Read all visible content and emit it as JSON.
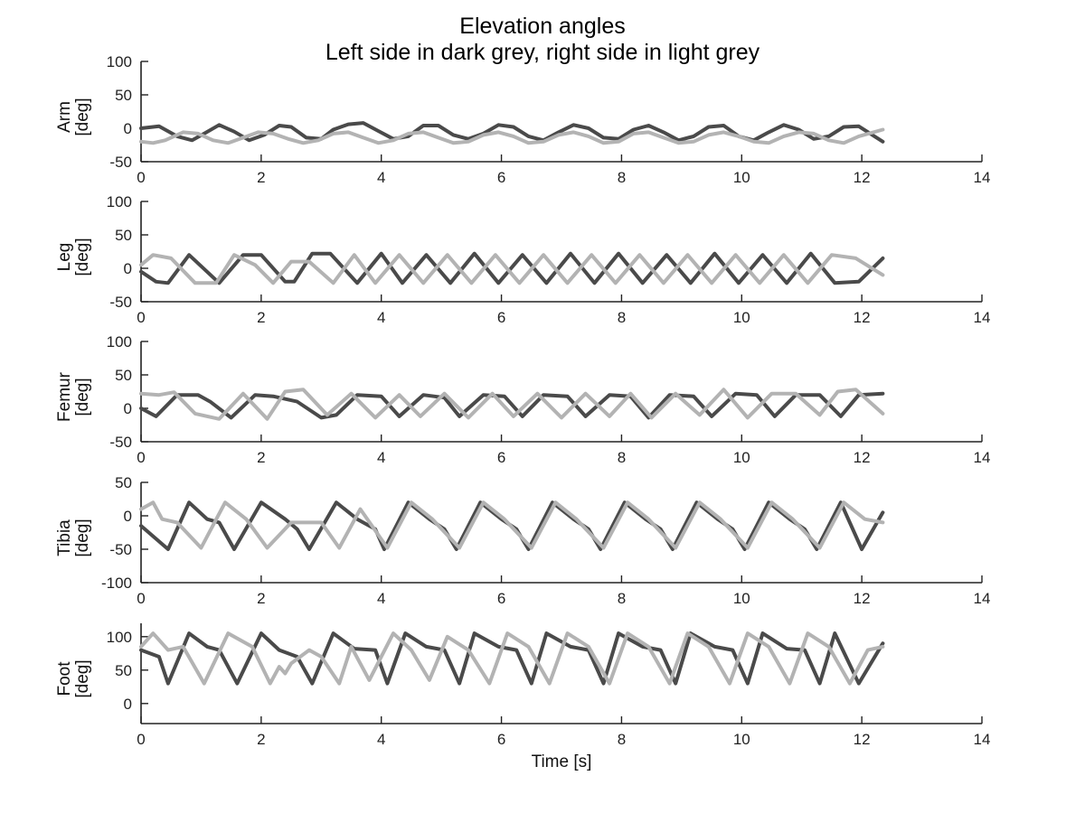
{
  "chart_data": {
    "type": "line",
    "title": "Elevation angles",
    "subtitle": "Left side in dark grey, right side in light grey",
    "xlabel": "Time [s]",
    "xlim": [
      0,
      14
    ],
    "xticks": [
      0,
      2,
      4,
      6,
      8,
      10,
      12,
      14
    ],
    "grid": false,
    "colors": {
      "left": "#4a4a4a",
      "right": "#b3b3b3"
    },
    "panels": [
      {
        "ylabel": [
          "Arm",
          "[deg]"
        ],
        "ylim": [
          -50,
          100
        ],
        "yticks": [
          -50,
          0,
          50,
          100
        ],
        "series": [
          {
            "side": "left",
            "x": [
              0,
              0.3,
              0.6,
              0.85,
              1.05,
              1.3,
              1.55,
              1.8,
              2.05,
              2.3,
              2.5,
              2.75,
              3.0,
              3.2,
              3.45,
              3.7,
              3.95,
              4.2,
              4.45,
              4.7,
              4.95,
              5.2,
              5.45,
              5.7,
              5.95,
              6.2,
              6.45,
              6.7,
              6.95,
              7.2,
              7.45,
              7.7,
              7.95,
              8.2,
              8.45,
              8.7,
              8.95,
              9.2,
              9.45,
              9.7,
              9.95,
              10.2,
              10.45,
              10.7,
              10.95,
              11.2,
              11.45,
              11.7,
              11.95,
              12.35
            ],
            "y": [
              0,
              3,
              -12,
              -18,
              -8,
              5,
              -5,
              -18,
              -10,
              4,
              2,
              -14,
              -16,
              -2,
              6,
              8,
              -4,
              -16,
              -12,
              4,
              4,
              -10,
              -16,
              -8,
              5,
              2,
              -12,
              -18,
              -6,
              5,
              0,
              -14,
              -16,
              -2,
              4,
              -6,
              -18,
              -12,
              2,
              4,
              -12,
              -18,
              -6,
              5,
              -2,
              -16,
              -12,
              2,
              3,
              -20
            ]
          },
          {
            "side": "right",
            "x": [
              0,
              0.2,
              0.4,
              0.7,
              0.95,
              1.2,
              1.45,
              1.7,
              1.95,
              2.2,
              2.45,
              2.7,
              2.95,
              3.2,
              3.45,
              3.7,
              3.95,
              4.2,
              4.45,
              4.7,
              4.95,
              5.2,
              5.45,
              5.7,
              5.95,
              6.2,
              6.45,
              6.7,
              6.95,
              7.2,
              7.45,
              7.7,
              7.95,
              8.2,
              8.45,
              8.7,
              8.95,
              9.2,
              9.45,
              9.7,
              9.95,
              10.2,
              10.45,
              10.7,
              10.95,
              11.2,
              11.45,
              11.7,
              11.95,
              12.35
            ],
            "y": [
              -20,
              -22,
              -18,
              -6,
              -8,
              -18,
              -22,
              -14,
              -6,
              -8,
              -16,
              -22,
              -18,
              -8,
              -6,
              -14,
              -22,
              -18,
              -8,
              -6,
              -14,
              -22,
              -20,
              -10,
              -6,
              -12,
              -22,
              -20,
              -10,
              -6,
              -12,
              -22,
              -20,
              -8,
              -6,
              -14,
              -22,
              -20,
              -10,
              -6,
              -12,
              -20,
              -22,
              -12,
              -6,
              -8,
              -18,
              -22,
              -12,
              -2
            ]
          }
        ]
      },
      {
        "ylabel": [
          "Leg",
          "[deg]"
        ],
        "ylim": [
          -50,
          100
        ],
        "yticks": [
          -50,
          0,
          50,
          100
        ],
        "series": [
          {
            "side": "left",
            "x": [
              0,
              0.25,
              0.45,
              0.8,
              1.3,
              1.7,
              2.0,
              2.4,
              2.55,
              2.85,
              3.15,
              3.6,
              4.0,
              4.35,
              4.75,
              5.15,
              5.55,
              5.95,
              6.35,
              6.75,
              7.15,
              7.55,
              7.95,
              8.35,
              8.75,
              9.15,
              9.55,
              9.95,
              10.35,
              10.75,
              11.15,
              11.55,
              11.95,
              12.35
            ],
            "y": [
              -5,
              -20,
              -22,
              20,
              -22,
              20,
              20,
              -20,
              -20,
              22,
              22,
              -22,
              22,
              -22,
              20,
              -22,
              22,
              -22,
              20,
              -22,
              22,
              -22,
              22,
              -22,
              20,
              -22,
              22,
              -22,
              20,
              -22,
              22,
              -22,
              -20,
              15
            ]
          },
          {
            "side": "right",
            "x": [
              0,
              0.2,
              0.5,
              0.9,
              1.25,
              1.55,
              1.9,
              2.2,
              2.5,
              2.8,
              3.2,
              3.55,
              3.9,
              4.3,
              4.7,
              5.1,
              5.5,
              5.9,
              6.3,
              6.7,
              7.1,
              7.5,
              7.9,
              8.3,
              8.7,
              9.1,
              9.5,
              9.9,
              10.3,
              10.7,
              11.1,
              11.5,
              11.9,
              12.35
            ],
            "y": [
              5,
              20,
              15,
              -22,
              -22,
              20,
              5,
              -22,
              10,
              10,
              -22,
              20,
              -22,
              20,
              -22,
              20,
              -22,
              20,
              -22,
              20,
              -22,
              20,
              -22,
              20,
              -22,
              20,
              -22,
              20,
              -22,
              20,
              -22,
              20,
              15,
              -10
            ]
          }
        ]
      },
      {
        "ylabel": [
          "Femur",
          "[deg]"
        ],
        "ylim": [
          -50,
          100
        ],
        "yticks": [
          -50,
          0,
          50,
          100
        ],
        "series": [
          {
            "side": "left",
            "x": [
              0,
              0.25,
              0.6,
              0.95,
              1.15,
              1.5,
              1.9,
              2.2,
              2.6,
              3.0,
              3.25,
              3.6,
              4.0,
              4.3,
              4.7,
              5.05,
              5.3,
              5.7,
              6.05,
              6.35,
              6.7,
              7.1,
              7.4,
              7.8,
              8.15,
              8.45,
              8.8,
              9.2,
              9.5,
              9.9,
              10.25,
              10.55,
              10.9,
              11.3,
              11.65,
              11.95,
              12.35
            ],
            "y": [
              0,
              -12,
              20,
              20,
              10,
              -14,
              20,
              18,
              10,
              -14,
              -10,
              20,
              18,
              -12,
              20,
              16,
              -12,
              20,
              18,
              -12,
              20,
              18,
              -12,
              20,
              18,
              -14,
              20,
              18,
              -12,
              22,
              20,
              -12,
              20,
              20,
              -12,
              20,
              22
            ]
          },
          {
            "side": "right",
            "x": [
              0,
              0.3,
              0.55,
              0.9,
              1.3,
              1.7,
              2.1,
              2.4,
              2.7,
              3.1,
              3.5,
              3.9,
              4.3,
              4.65,
              5.05,
              5.45,
              5.85,
              6.2,
              6.6,
              7.0,
              7.4,
              7.8,
              8.15,
              8.5,
              8.9,
              9.3,
              9.7,
              10.1,
              10.5,
              10.9,
              11.3,
              11.6,
              11.9,
              12.35
            ],
            "y": [
              22,
              20,
              24,
              -8,
              -16,
              22,
              -16,
              25,
              28,
              -10,
              22,
              -14,
              20,
              -12,
              22,
              -14,
              22,
              -12,
              22,
              -14,
              22,
              -12,
              22,
              -14,
              22,
              -10,
              28,
              -14,
              22,
              22,
              -10,
              25,
              28,
              -8
            ]
          }
        ]
      },
      {
        "ylabel": [
          "Tibia",
          "[deg]"
        ],
        "ylim": [
          -100,
          50
        ],
        "yticks": [
          -100,
          -50,
          0,
          50
        ],
        "series": [
          {
            "side": "left",
            "x": [
              0,
              0.45,
              0.8,
              1.1,
              1.3,
              1.55,
              2.0,
              2.4,
              2.6,
              2.8,
              3.25,
              3.6,
              3.9,
              4.05,
              4.45,
              4.8,
              5.05,
              5.25,
              5.65,
              6.0,
              6.25,
              6.45,
              6.85,
              7.2,
              7.45,
              7.65,
              8.05,
              8.4,
              8.65,
              8.85,
              9.25,
              9.6,
              9.85,
              10.05,
              10.45,
              10.8,
              11.05,
              11.25,
              11.65,
              12.0,
              12.35
            ],
            "y": [
              -15,
              -50,
              20,
              -5,
              -10,
              -50,
              20,
              -5,
              -20,
              -50,
              20,
              -5,
              -20,
              -50,
              20,
              -5,
              -20,
              -50,
              20,
              -5,
              -20,
              -50,
              20,
              -5,
              -20,
              -50,
              20,
              -5,
              -20,
              -50,
              20,
              -5,
              -20,
              -50,
              20,
              -5,
              -20,
              -50,
              20,
              -50,
              5
            ]
          },
          {
            "side": "right",
            "x": [
              0,
              0.2,
              0.35,
              0.6,
              1.0,
              1.4,
              1.75,
              2.1,
              2.5,
              3.0,
              3.3,
              3.65,
              4.1,
              4.5,
              4.85,
              5.3,
              5.7,
              6.05,
              6.5,
              6.9,
              7.25,
              7.7,
              8.1,
              8.45,
              8.9,
              9.3,
              9.65,
              10.1,
              10.5,
              10.85,
              11.3,
              11.7,
              12.05,
              12.35
            ],
            "y": [
              10,
              20,
              -5,
              -10,
              -48,
              20,
              -5,
              -48,
              -10,
              -10,
              -48,
              10,
              -48,
              20,
              -5,
              -48,
              20,
              -5,
              -48,
              20,
              -5,
              -48,
              20,
              -5,
              -48,
              20,
              -5,
              -48,
              20,
              -5,
              -48,
              20,
              -5,
              -10
            ]
          }
        ]
      },
      {
        "ylabel": [
          "Foot",
          "[deg]"
        ],
        "ylim": [
          -30,
          120
        ],
        "yticks": [
          0,
          50,
          100
        ],
        "series": [
          {
            "side": "left",
            "x": [
              0,
              0.3,
              0.45,
              0.8,
              1.1,
              1.3,
              1.6,
              2.0,
              2.3,
              2.6,
              2.85,
              3.2,
              3.55,
              3.9,
              4.1,
              4.4,
              4.75,
              5.05,
              5.3,
              5.55,
              5.95,
              6.25,
              6.5,
              6.75,
              7.15,
              7.45,
              7.7,
              7.95,
              8.35,
              8.65,
              8.9,
              9.15,
              9.55,
              9.85,
              10.1,
              10.35,
              10.75,
              11.05,
              11.3,
              11.55,
              11.95,
              12.35
            ],
            "y": [
              80,
              70,
              30,
              105,
              85,
              80,
              30,
              105,
              80,
              70,
              30,
              105,
              82,
              80,
              30,
              105,
              85,
              80,
              30,
              105,
              85,
              80,
              30,
              105,
              85,
              80,
              30,
              105,
              85,
              80,
              30,
              105,
              85,
              80,
              30,
              105,
              82,
              80,
              30,
              105,
              30,
              90
            ]
          },
          {
            "side": "right",
            "x": [
              0,
              0.2,
              0.45,
              0.7,
              1.05,
              1.45,
              1.85,
              2.15,
              2.3,
              2.4,
              2.5,
              2.8,
              3.0,
              3.3,
              3.5,
              3.8,
              4.2,
              4.5,
              4.8,
              5.1,
              5.45,
              5.8,
              6.1,
              6.45,
              6.8,
              7.1,
              7.45,
              7.8,
              8.1,
              8.45,
              8.8,
              9.1,
              9.45,
              9.8,
              10.1,
              10.45,
              10.8,
              11.1,
              11.45,
              11.8,
              12.1,
              12.35
            ],
            "y": [
              85,
              105,
              80,
              85,
              30,
              105,
              85,
              30,
              55,
              45,
              60,
              80,
              70,
              30,
              85,
              35,
              105,
              80,
              35,
              100,
              80,
              30,
              105,
              85,
              30,
              105,
              85,
              30,
              105,
              85,
              30,
              105,
              85,
              30,
              105,
              85,
              30,
              105,
              85,
              30,
              80,
              85
            ]
          }
        ]
      }
    ]
  }
}
